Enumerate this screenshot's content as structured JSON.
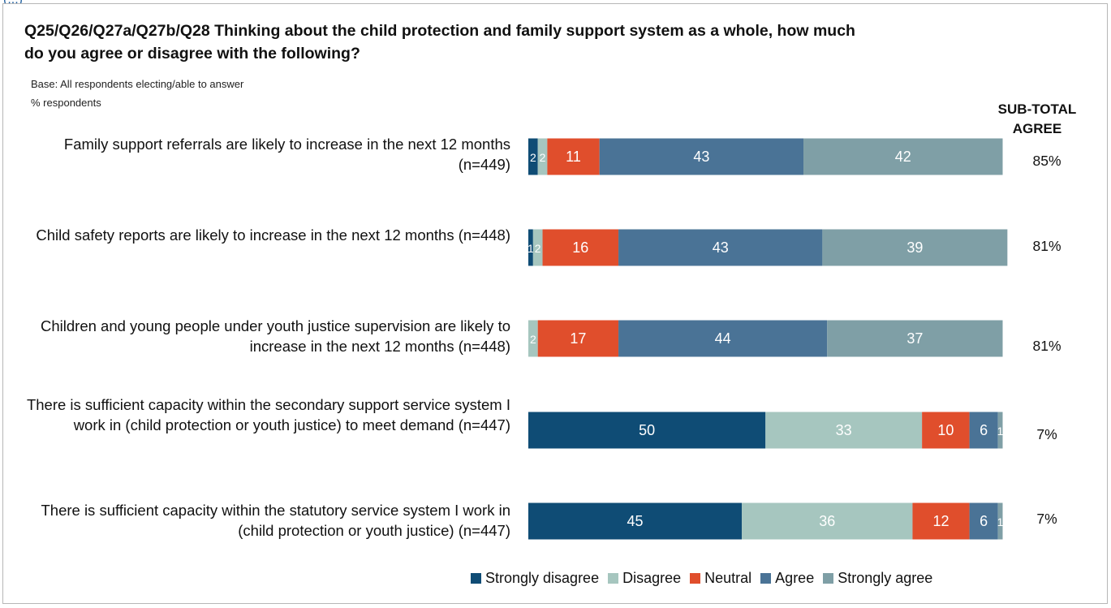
{
  "header": {
    "top_cut_text": "(...)",
    "title": "Q25/Q26/Q27a/Q27b/Q28 Thinking about the child protection and family support system as a whole, how much do you agree or disagree with the following?",
    "base_note": "Base: All respondents electing/able to answer",
    "unit_note": "% respondents",
    "subtotal_header": "SUB-TOTAL AGREE"
  },
  "chart_data": {
    "type": "bar",
    "orientation": "horizontal",
    "stacked": true,
    "categories": [
      "Family support referrals are likely to increase in the next 12 months (n=449)",
      "Child safety reports are likely to increase in the next 12 months (n=448)",
      "Children and young people under youth justice supervision are likely to increase in the next 12 months (n=448)",
      "There is sufficient capacity within the secondary support service system I work in (child protection or youth justice) to meet demand (n=447)",
      "There is sufficient capacity within the statutory service system I work in (child protection or youth justice) (n=447)"
    ],
    "series": [
      {
        "name": "Strongly disagree",
        "color": "#0f4c75",
        "values": [
          2,
          1,
          0,
          50,
          45
        ]
      },
      {
        "name": "Disagree",
        "color": "#a6c6bf",
        "values": [
          2,
          2,
          2,
          33,
          36
        ]
      },
      {
        "name": "Neutral",
        "color": "#e04e2c",
        "values": [
          11,
          16,
          17,
          10,
          12
        ]
      },
      {
        "name": "Agree",
        "color": "#4a7396",
        "values": [
          43,
          43,
          44,
          6,
          6
        ]
      },
      {
        "name": "Strongly agree",
        "color": "#7f9fa6",
        "values": [
          42,
          39,
          37,
          1,
          1
        ]
      }
    ],
    "subtotal_agree": [
      "85%",
      "81%",
      "81%",
      "7%",
      "7%"
    ],
    "legend_position": "bottom",
    "grid": false
  }
}
